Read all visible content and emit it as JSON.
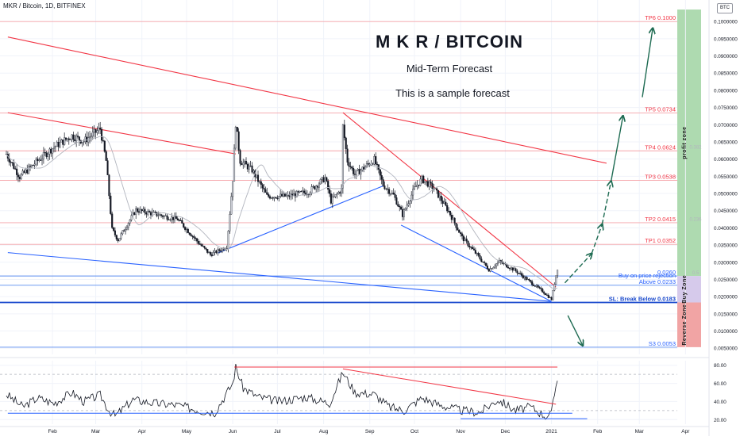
{
  "header": {
    "symbol_line": "MKR / Bitcoin, 1D, BITFINEX",
    "currency_badge": "BTC"
  },
  "chart_data": {
    "type": "candlestick",
    "title": "M K R / BITCOIN",
    "subtitle": "Mid-Term Forecast",
    "note": "This is a sample forecast",
    "price_axis": {
      "ylim": [
        0.0032,
        0.1035
      ],
      "ticks": [
        "0.1000000",
        "0.0950000",
        "0.0900000",
        "0.0850000",
        "0.0800000",
        "0.0750000",
        "0.0700000",
        "0.0650000",
        "0.0600000",
        "0.0550000",
        "0.0500000",
        "0.0450000",
        "0.0400000",
        "0.0350000",
        "0.0300000",
        "0.0250000",
        "0.0200000",
        "0.0150000",
        "0.0100000",
        "0.0050000"
      ]
    },
    "time_axis": {
      "labels": [
        "Feb",
        "Mar",
        "Apr",
        "May",
        "Jun",
        "Jul",
        "Aug",
        "Sep",
        "Oct",
        "Nov",
        "Dec",
        "2021",
        "Feb",
        "Mar",
        "Apr"
      ]
    },
    "price_path": [
      [
        "2020-01-01",
        0.0615
      ],
      [
        "2020-01-10",
        0.0548
      ],
      [
        "2020-01-22",
        0.0595
      ],
      [
        "2020-02-02",
        0.0635
      ],
      [
        "2020-02-14",
        0.0668
      ],
      [
        "2020-02-22",
        0.0652
      ],
      [
        "2020-03-04",
        0.0688
      ],
      [
        "2020-03-08",
        0.0595
      ],
      [
        "2020-03-12",
        0.0395
      ],
      [
        "2020-03-16",
        0.0365
      ],
      [
        "2020-03-28",
        0.0452
      ],
      [
        "2020-04-12",
        0.0438
      ],
      [
        "2020-04-25",
        0.0425
      ],
      [
        "2020-05-10",
        0.0352
      ],
      [
        "2020-05-17",
        0.0322
      ],
      [
        "2020-05-28",
        0.0345
      ],
      [
        "2020-06-01",
        0.0542
      ],
      [
        "2020-06-03",
        0.0705
      ],
      [
        "2020-06-06",
        0.0595
      ],
      [
        "2020-06-14",
        0.0568
      ],
      [
        "2020-06-24",
        0.0492
      ],
      [
        "2020-07-08",
        0.0492
      ],
      [
        "2020-07-22",
        0.0505
      ],
      [
        "2020-08-02",
        0.0545
      ],
      [
        "2020-08-06",
        0.0478
      ],
      [
        "2020-08-13",
        0.0512
      ],
      [
        "2020-08-14",
        0.0695
      ],
      [
        "2020-08-17",
        0.0595
      ],
      [
        "2020-08-22",
        0.0555
      ],
      [
        "2020-09-04",
        0.0598
      ],
      [
        "2020-09-10",
        0.0525
      ],
      [
        "2020-09-17",
        0.0495
      ],
      [
        "2020-09-23",
        0.0438
      ],
      [
        "2020-10-01",
        0.0515
      ],
      [
        "2020-10-06",
        0.0542
      ],
      [
        "2020-10-14",
        0.0515
      ],
      [
        "2020-10-24",
        0.0448
      ],
      [
        "2020-11-02",
        0.0372
      ],
      [
        "2020-11-12",
        0.0322
      ],
      [
        "2020-11-20",
        0.0278
      ],
      [
        "2020-11-27",
        0.0302
      ],
      [
        "2020-12-08",
        0.0275
      ],
      [
        "2020-12-17",
        0.0245
      ],
      [
        "2020-12-27",
        0.0212
      ],
      [
        "2021-01-01",
        0.0192
      ],
      [
        "2021-01-04",
        0.0262
      ],
      [
        "2021-01-05",
        0.0282
      ]
    ],
    "levels": [
      {
        "label": "TP6 0.1000",
        "price": 0.1
      },
      {
        "label": "TP5 0.0734",
        "price": 0.0734
      },
      {
        "label": "TP4 0.0624",
        "price": 0.0624
      },
      {
        "label": "TP3 0.0538",
        "price": 0.0538
      },
      {
        "label": "TP2 0.0415",
        "price": 0.0415
      },
      {
        "label": "TP1 0.0352",
        "price": 0.0352
      },
      {
        "label": "0.0260",
        "price": 0.026
      },
      {
        "label": "Above 0.0233",
        "price": 0.0233
      },
      {
        "label": "SL: Break Below 0.0183",
        "price": 0.0183
      },
      {
        "label": "S3 0.0053",
        "price": 0.0053
      }
    ],
    "buy_note": "Buy on price rejection",
    "zones": [
      {
        "label": "profit zone",
        "from": 0.026,
        "to": 0.1035,
        "color": "#a5d6a7"
      },
      {
        "label": "Buy Zone",
        "from": 0.0183,
        "to": 0.026,
        "color": "#d1c4e9"
      },
      {
        "label": "Reverse Zone",
        "from": 0.0053,
        "to": 0.0183,
        "color": "#ef9a9a"
      }
    ],
    "faint_labels": [
      "0.382",
      "0.236",
      "0.5"
    ],
    "trendlines": [
      {
        "name": "upper-resistance",
        "color": "#f23645",
        "points": [
          [
            "2020-01-02",
            0.0955
          ],
          [
            "2021-02-07",
            0.0588
          ]
        ]
      },
      {
        "name": "resistance-2",
        "color": "#f23645",
        "points": [
          [
            "2020-01-02",
            0.0735
          ],
          [
            "2020-06-03",
            0.0615
          ]
        ]
      },
      {
        "name": "resistance-3",
        "color": "#f23645",
        "points": [
          [
            "2020-08-14",
            0.0735
          ],
          [
            "2021-01-04",
            0.0228
          ]
        ]
      },
      {
        "name": "support-1",
        "color": "#2962ff",
        "points": [
          [
            "2020-05-22",
            0.0327
          ],
          [
            "2020-09-10",
            0.0522
          ]
        ]
      },
      {
        "name": "support-2",
        "color": "#2962ff",
        "points": [
          [
            "2020-09-22",
            0.0408
          ],
          [
            "2021-01-01",
            0.0186
          ]
        ]
      },
      {
        "name": "support-3",
        "color": "#2962ff",
        "points": [
          [
            "2020-01-02",
            0.0328
          ],
          [
            "2021-01-01",
            0.0186
          ]
        ]
      }
    ],
    "projection_arrows": [
      {
        "color": "#1e6b52",
        "dashed": true,
        "points": [
          [
            "2021-01-10",
            0.024
          ],
          [
            "2021-01-28",
            0.0325
          ]
        ]
      },
      {
        "color": "#1e6b52",
        "dashed": true,
        "points": [
          [
            "2021-01-28",
            0.0325
          ],
          [
            "2021-02-04",
            0.041
          ]
        ]
      },
      {
        "color": "#1e6b52",
        "dashed": true,
        "points": [
          [
            "2021-02-04",
            0.041
          ],
          [
            "2021-02-10",
            0.0535
          ]
        ]
      },
      {
        "color": "#1e6b52",
        "dashed": false,
        "points": [
          [
            "2021-02-10",
            0.0535
          ],
          [
            "2021-02-18",
            0.0725
          ]
        ]
      },
      {
        "color": "#1e6b52",
        "dashed": false,
        "points": [
          [
            "2021-03-03",
            0.078
          ],
          [
            "2021-03-10",
            0.098
          ]
        ]
      },
      {
        "color": "#1e6b52",
        "dashed": false,
        "points": [
          [
            "2021-01-12",
            0.0145
          ],
          [
            "2021-01-22",
            0.0058
          ]
        ]
      }
    ],
    "oscillator": {
      "ylim": [
        15,
        85
      ],
      "ticks": [
        "80.00",
        "60.00",
        "40.00",
        "20.00"
      ],
      "path": [
        [
          "2020-01-01",
          48
        ],
        [
          "2020-01-12",
          34
        ],
        [
          "2020-01-22",
          44
        ],
        [
          "2020-02-02",
          38
        ],
        [
          "2020-02-14",
          50
        ],
        [
          "2020-02-22",
          40
        ],
        [
          "2020-03-04",
          47
        ],
        [
          "2020-03-10",
          30
        ],
        [
          "2020-03-14",
          24
        ],
        [
          "2020-03-26",
          42
        ],
        [
          "2020-04-10",
          38
        ],
        [
          "2020-04-25",
          36
        ],
        [
          "2020-05-10",
          30
        ],
        [
          "2020-05-20",
          28
        ],
        [
          "2020-06-01",
          60
        ],
        [
          "2020-06-03",
          78
        ],
        [
          "2020-06-08",
          55
        ],
        [
          "2020-06-18",
          45
        ],
        [
          "2020-07-02",
          40
        ],
        [
          "2020-07-20",
          45
        ],
        [
          "2020-08-05",
          38
        ],
        [
          "2020-08-14",
          72
        ],
        [
          "2020-08-22",
          50
        ],
        [
          "2020-09-04",
          48
        ],
        [
          "2020-09-14",
          34
        ],
        [
          "2020-09-24",
          30
        ],
        [
          "2020-10-06",
          44
        ],
        [
          "2020-10-18",
          36
        ],
        [
          "2020-11-02",
          30
        ],
        [
          "2020-11-14",
          28
        ],
        [
          "2020-11-26",
          42
        ],
        [
          "2020-12-08",
          30
        ],
        [
          "2020-12-18",
          34
        ],
        [
          "2020-12-28",
          24
        ],
        [
          "2021-01-01",
          26
        ],
        [
          "2021-01-03",
          48
        ],
        [
          "2021-01-05",
          66
        ]
      ],
      "lines": [
        {
          "color": "#f23645",
          "points": [
            [
              "2020-06-02",
              78
            ],
            [
              "2021-01-05",
              78
            ]
          ]
        },
        {
          "color": "#f23645",
          "points": [
            [
              "2020-08-14",
              76
            ],
            [
              "2021-01-04",
              37
            ]
          ]
        },
        {
          "color": "#2962ff",
          "points": [
            [
              "2020-01-02",
              27
            ],
            [
              "2021-01-15",
              27
            ]
          ]
        },
        {
          "color": "#2962ff",
          "points": [
            [
              "2020-11-01",
              21
            ],
            [
              "2021-01-25",
              21
            ]
          ]
        }
      ]
    }
  }
}
